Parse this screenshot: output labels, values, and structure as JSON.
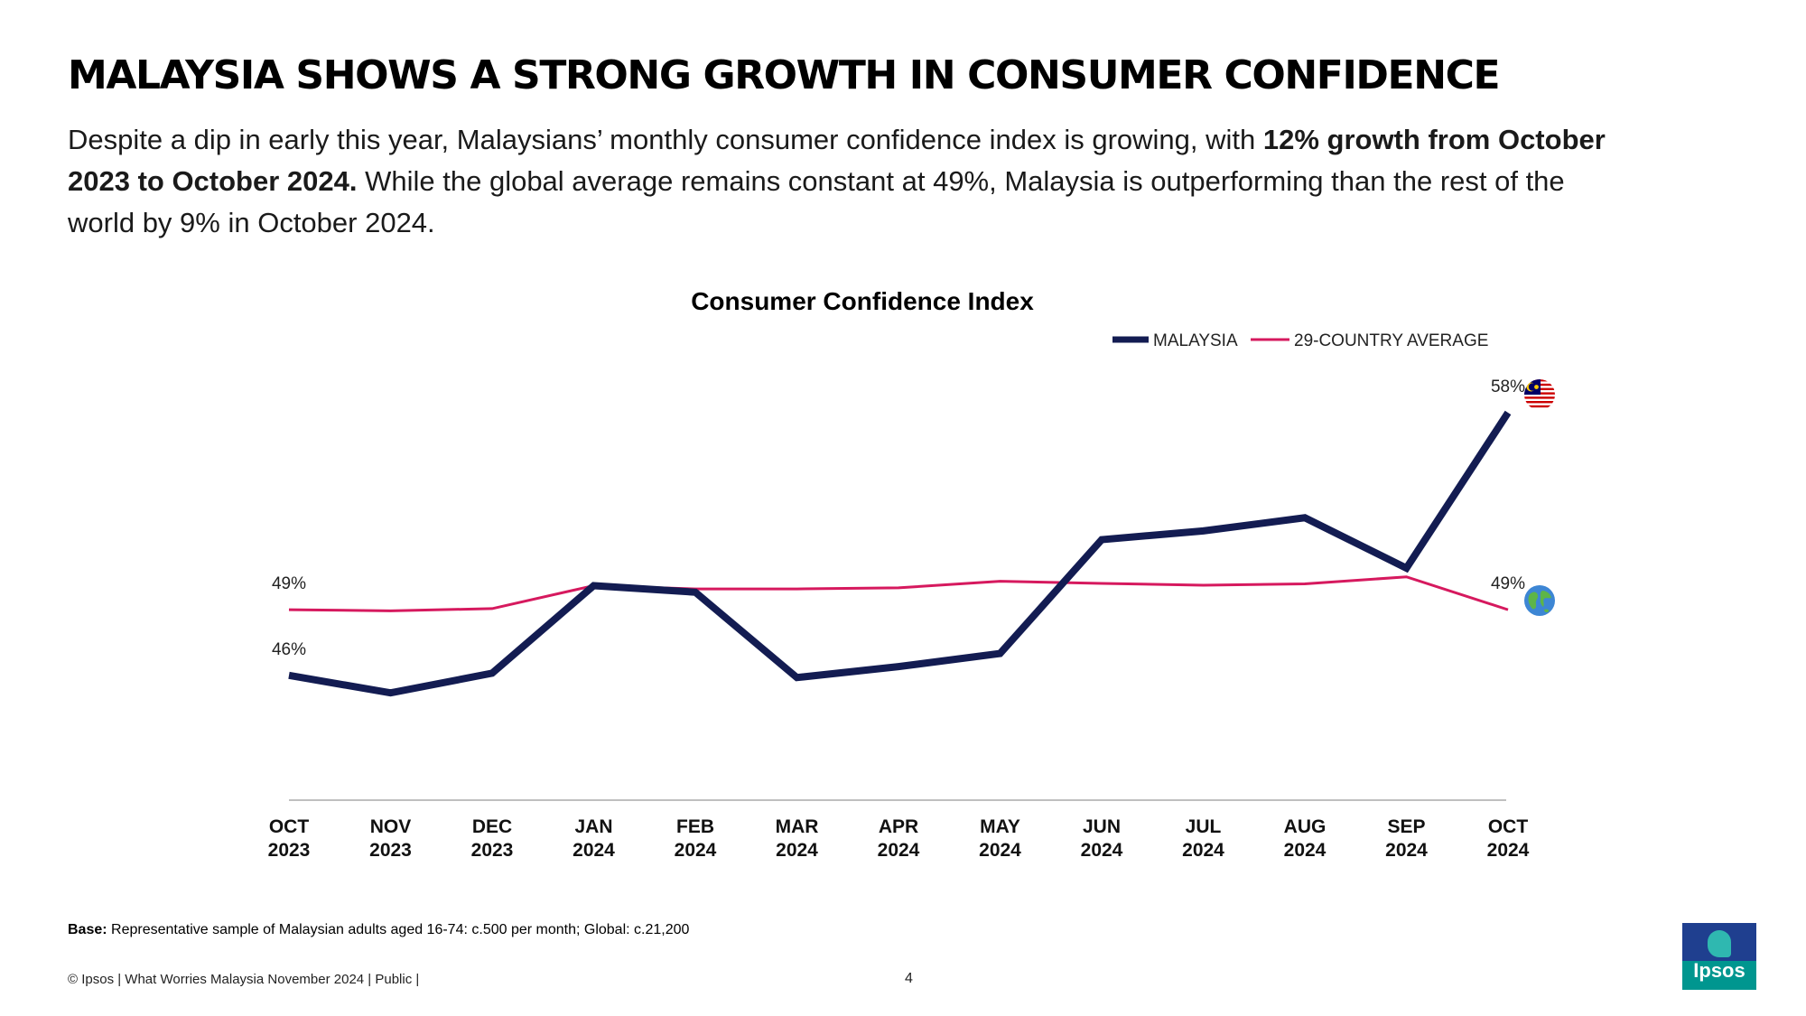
{
  "header": {
    "title": "MALAYSIA SHOWS A STRONG GROWTH IN CONSUMER CONFIDENCE",
    "subtitle_part1": "Despite a dip in early this year, Malaysians’ monthly consumer confidence index is growing, with ",
    "subtitle_bold": "12% growth from October 2023 to October 2024.",
    "subtitle_part2": " While the global average remains constant at 49%, Malaysia is outperforming than the rest of the world by 9% in October 2024."
  },
  "chart_data": {
    "type": "line",
    "title": "Consumer Confidence Index",
    "categories": [
      [
        "OCT",
        "2023"
      ],
      [
        "NOV",
        "2023"
      ],
      [
        "DEC",
        "2023"
      ],
      [
        "JAN",
        "2024"
      ],
      [
        "FEB",
        "2024"
      ],
      [
        "MAR",
        "2024"
      ],
      [
        "APR",
        "2024"
      ],
      [
        "MAY",
        "2024"
      ],
      [
        "JUN",
        "2024"
      ],
      [
        "JUL",
        "2024"
      ],
      [
        "AUG",
        "2024"
      ],
      [
        "SEP",
        "2024"
      ],
      [
        "OCT",
        "2024"
      ]
    ],
    "series": [
      {
        "name": "MALAYSIA",
        "color": "#131c52",
        "values": [
          46.0,
          45.2,
          46.1,
          50.1,
          49.8,
          45.9,
          46.4,
          47.0,
          52.2,
          52.6,
          53.2,
          50.9,
          58.0
        ],
        "labels": [
          {
            "index": 0,
            "text": "46%"
          },
          {
            "index": 12,
            "text": "58%"
          }
        ],
        "end_icon": "malaysia-flag-icon"
      },
      {
        "name": "29-COUNTRY AVERAGE",
        "color": "#d6195e",
        "values": [
          49.0,
          48.95,
          49.05,
          50.1,
          49.95,
          49.95,
          50.0,
          50.3,
          50.2,
          50.12,
          50.18,
          50.5,
          49.0
        ],
        "labels": [
          {
            "index": 0,
            "text": "49%"
          },
          {
            "index": 12,
            "text": "49%"
          }
        ],
        "end_icon": "globe-icon"
      }
    ],
    "ylim": [
      40.3,
      62
    ],
    "xlabel": "",
    "ylabel": "",
    "grid": false,
    "legend_position": "top-right"
  },
  "footer": {
    "base_label": "Base:",
    "base_text": " Representative sample of Malaysian adults aged 16-74: c.500 per month; Global: c.21,200",
    "copyright": "© Ipsos | What Worries Malaysia November 2024 | Public |",
    "page_number": "4"
  },
  "logo": {
    "text": "Ipsos"
  }
}
